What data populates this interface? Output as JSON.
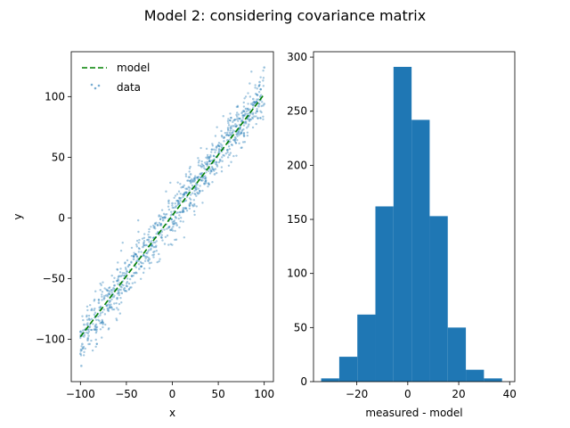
{
  "suptitle": "Model 2: considering covariance matrix",
  "chart_data": [
    {
      "type": "scatter",
      "xlabel": "x",
      "ylabel": "y",
      "xlim": [
        -110,
        110
      ],
      "ylim": [
        -135,
        137
      ],
      "xticks": [
        -100,
        -50,
        0,
        50,
        100
      ],
      "yticks": [
        -100,
        -50,
        0,
        50,
        100
      ],
      "xtick_labels": [
        "−100",
        "−50",
        "0",
        "50",
        "100"
      ],
      "ytick_labels": [
        "−100",
        "−50",
        "0",
        "50",
        "100"
      ],
      "legend_position": "top-left",
      "colors": {
        "model": "#008000",
        "data": "#1f77b4"
      },
      "series": [
        {
          "name": "model",
          "style": "dashed-line",
          "x": [
            -100,
            100
          ],
          "y": [
            -98,
            102
          ]
        },
        {
          "name": "data",
          "style": "points",
          "relation": "y ≈ x + 2 with noise sd ≈ 10",
          "x_range": [
            -100,
            100
          ],
          "x": [
            -100,
            -96,
            -92,
            -88,
            -84,
            -80,
            -76,
            -72,
            -68,
            -64,
            -60,
            -56,
            -52,
            -48,
            -44,
            -40,
            -36,
            -32,
            -28,
            -24,
            -20,
            -16,
            -12,
            -8,
            -4,
            0,
            4,
            8,
            12,
            16,
            20,
            24,
            28,
            32,
            36,
            40,
            44,
            48,
            52,
            56,
            60,
            64,
            68,
            72,
            76,
            80,
            84,
            88,
            92,
            96,
            100,
            -98,
            -90,
            -82,
            -74,
            -66,
            -58,
            -50,
            -42,
            -34,
            -26,
            -18,
            -10,
            -2,
            6,
            14,
            22,
            30,
            38,
            46,
            54,
            62,
            70,
            78,
            86,
            94,
            -99,
            -85,
            -70,
            -55,
            -40,
            -25,
            -10,
            5,
            20,
            35,
            50,
            65,
            80,
            95,
            -100,
            -60,
            -20,
            20,
            60,
            100
          ],
          "y": [
            -112,
            -88,
            -100,
            -76,
            -92,
            -70,
            -86,
            -64,
            -74,
            -58,
            -66,
            -48,
            -58,
            -40,
            -48,
            -30,
            -42,
            -24,
            -32,
            -16,
            -24,
            -6,
            -16,
            0,
            -8,
            12,
            0,
            16,
            8,
            24,
            12,
            32,
            20,
            42,
            30,
            50,
            40,
            58,
            48,
            66,
            56,
            74,
            64,
            82,
            72,
            90,
            80,
            98,
            88,
            106,
            94,
            -104,
            -84,
            -90,
            -66,
            -74,
            -48,
            -56,
            -34,
            -40,
            -18,
            -24,
            -2,
            -10,
            14,
            8,
            30,
            22,
            46,
            36,
            58,
            52,
            76,
            68,
            94,
            92,
            -122,
            -92,
            -60,
            -62,
            -30,
            -34,
            0,
            -6,
            36,
            28,
            60,
            70,
            78,
            112,
            -94,
            -52,
            -8,
            30,
            64,
            124
          ]
        }
      ]
    },
    {
      "type": "bar",
      "subtype": "histogram",
      "xlabel": "measured - model",
      "ylabel": "",
      "xlim": [
        -37,
        42
      ],
      "ylim": [
        0,
        305
      ],
      "xticks": [
        -20,
        0,
        20,
        40
      ],
      "yticks": [
        0,
        50,
        100,
        150,
        200,
        250,
        300
      ],
      "xtick_labels": [
        "−20",
        "0",
        "20",
        "40"
      ],
      "ytick_labels": [
        "0",
        "50",
        "100",
        "150",
        "200",
        "250",
        "300"
      ],
      "bar_color": "#1f77b4",
      "bin_edges": [
        -34,
        -26.9,
        -19.8,
        -12.7,
        -5.6,
        1.5,
        8.6,
        15.7,
        22.8,
        29.9,
        37
      ],
      "values": [
        3,
        23,
        62,
        162,
        291,
        242,
        153,
        50,
        11,
        3
      ]
    }
  ]
}
